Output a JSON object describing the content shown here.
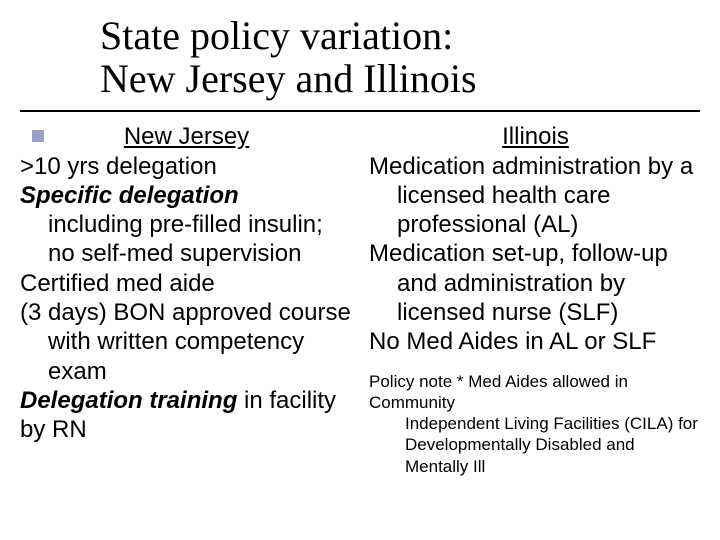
{
  "title_line1": "State policy variation:",
  "title_line2": "New Jersey and Illinois",
  "colors": {
    "text": "#000000",
    "background": "#ffffff",
    "accent_square": "#9aa0c2",
    "rule": "#000000"
  },
  "typography": {
    "title_font": "Times New Roman",
    "body_font": "Verdana",
    "title_fontsize_pt": 40,
    "body_fontsize_pt": 24,
    "note_fontsize_pt": 17
  },
  "left": {
    "header": "New Jersey",
    "l1": ">10 yrs delegation",
    "l2_emph": "Specific delegation",
    "l2_rest": " including pre-filled insulin; no self-med supervision",
    "l3": "Certified med aide",
    "l4": "(3 days) BON approved course with written competency exam",
    "l5_emph": "Delegation training",
    "l5_rest": " in facility by RN"
  },
  "right": {
    "header": "Illinois",
    "r1": "Medication administration by a licensed health care professional (AL)",
    "r2": "Medication set-up, follow-up and administration by licensed nurse (SLF)",
    "r3": "No Med Aides in AL or SLF",
    "note_lead": "Policy note * Med Aides allowed in Community",
    "note_body": "Independent Living Facilities (CILA) for Developmentally Disabled and Mentally Ill"
  }
}
